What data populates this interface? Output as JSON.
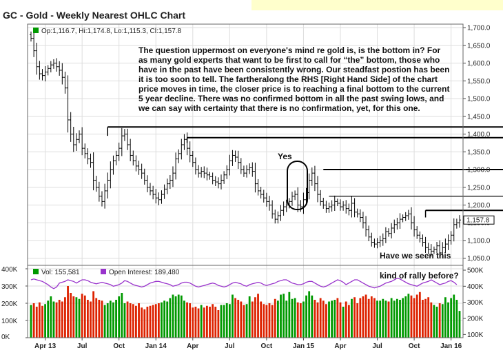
{
  "chart_data": [
    {
      "type": "ohlc",
      "title": "GC - Gold - Weekly Nearest OHLC Chart",
      "legend": "Op:1,116.7, Hi:1,174.8, Lo:1,115.3, Cl:1,157.8",
      "last_close_label": "1,157.8",
      "last_close": 1157.8,
      "ylim": [
        1030,
        1710
      ],
      "y_ticks": [
        "1,700.0",
        "1,650.0",
        "1,600.0",
        "1,550.0",
        "1,500.0",
        "1,450.0",
        "1,400.0",
        "1,350.0",
        "1,300.0",
        "1,250.0",
        "1,200.0",
        "1,150.0",
        "1,100.0",
        "1,050.0"
      ],
      "y_tick_values": [
        1700,
        1650,
        1600,
        1550,
        1500,
        1450,
        1400,
        1350,
        1300,
        1250,
        1200,
        1150,
        1100,
        1050
      ],
      "x_ticks": [
        "Apr 13",
        "Jul",
        "Oct",
        "Jan 14",
        "Apr",
        "Jul",
        "Oct",
        "Jan 15",
        "Apr",
        "Jul",
        "Oct",
        "Jan 16"
      ],
      "x_tick_weeks": [
        5,
        18,
        31,
        44,
        57,
        70,
        83,
        96,
        109,
        122,
        135,
        148
      ],
      "weeks": 152,
      "close": [
        1670,
        1635,
        1590,
        1570,
        1565,
        1575,
        1585,
        1595,
        1600,
        1590,
        1580,
        1560,
        1530,
        1440,
        1400,
        1370,
        1385,
        1400,
        1360,
        1345,
        1330,
        1320,
        1270,
        1250,
        1225,
        1210,
        1240,
        1270,
        1300,
        1325,
        1340,
        1360,
        1395,
        1400,
        1370,
        1340,
        1325,
        1310,
        1300,
        1290,
        1270,
        1250,
        1240,
        1230,
        1220,
        1215,
        1230,
        1245,
        1260,
        1270,
        1290,
        1330,
        1345,
        1370,
        1385,
        1360,
        1340,
        1320,
        1300,
        1290,
        1295,
        1290,
        1285,
        1280,
        1270,
        1265,
        1260,
        1270,
        1285,
        1300,
        1325,
        1340,
        1335,
        1320,
        1300,
        1290,
        1300,
        1305,
        1295,
        1260,
        1240,
        1230,
        1220,
        1210,
        1200,
        1175,
        1160,
        1170,
        1185,
        1195,
        1200,
        1210,
        1225,
        1230,
        1200,
        1195,
        1215,
        1235,
        1270,
        1290,
        1260,
        1230,
        1210,
        1200,
        1190,
        1195,
        1200,
        1210,
        1205,
        1195,
        1200,
        1190,
        1185,
        1205,
        1180,
        1175,
        1165,
        1150,
        1130,
        1110,
        1095,
        1090,
        1095,
        1100,
        1105,
        1125,
        1120,
        1135,
        1145,
        1150,
        1160,
        1165,
        1170,
        1175,
        1150,
        1130,
        1115,
        1105,
        1095,
        1080,
        1075,
        1070,
        1075,
        1085,
        1065,
        1080,
        1090,
        1100,
        1115,
        1145,
        1150,
        1157.8
      ],
      "volume": [
        190,
        200,
        180,
        205,
        185,
        195,
        215,
        240,
        210,
        205,
        220,
        210,
        235,
        300,
        260,
        240,
        235,
        225,
        255,
        245,
        220,
        210,
        270,
        230,
        220,
        215,
        190,
        200,
        215,
        205,
        220,
        240,
        260,
        200,
        210,
        200,
        195,
        185,
        200,
        175,
        165,
        180,
        185,
        190,
        195,
        200,
        205,
        215,
        210,
        230,
        250,
        240,
        250,
        245,
        215,
        205,
        200,
        175,
        180,
        170,
        190,
        175,
        185,
        180,
        195,
        180,
        160,
        190,
        190,
        200,
        195,
        250,
        230,
        220,
        210,
        190,
        195,
        240,
        210,
        235,
        255,
        210,
        195,
        190,
        200,
        190,
        225,
        215,
        250,
        255,
        215,
        265,
        225,
        230,
        205,
        200,
        210,
        245,
        270,
        245,
        220,
        205,
        230,
        215,
        195,
        210,
        215,
        220,
        230,
        205,
        180,
        210,
        190,
        225,
        235,
        200,
        230,
        240,
        250,
        225,
        240,
        230,
        215,
        215,
        225,
        215,
        210,
        230,
        215,
        225,
        220,
        230,
        240,
        255,
        245,
        230,
        250,
        265,
        220,
        225,
        235,
        205,
        190,
        180,
        200,
        195,
        235,
        205,
        230,
        250,
        220,
        155.581
      ],
      "open_interest": [
        440,
        445,
        440,
        435,
        430,
        420,
        410,
        395,
        385,
        395,
        420,
        425,
        430,
        440,
        435,
        430,
        420,
        430,
        440,
        440,
        435,
        425,
        420,
        415,
        420,
        425,
        420,
        415,
        410,
        400,
        405,
        410,
        420,
        435,
        430,
        420,
        410,
        405,
        400,
        395,
        400,
        410,
        420,
        425,
        430,
        430,
        425,
        420,
        415,
        410,
        400,
        405,
        410,
        420,
        425,
        425,
        420,
        410,
        400,
        395,
        400,
        405,
        410,
        415,
        420,
        415,
        405,
        400,
        395,
        400,
        410,
        420,
        425,
        420,
        415,
        405,
        400,
        410,
        415,
        420,
        425,
        420,
        410,
        405,
        410,
        415,
        420,
        430,
        435,
        440,
        440,
        430,
        420,
        415,
        410,
        410,
        415,
        425,
        430,
        430,
        420,
        410,
        400,
        395,
        400,
        410,
        420,
        430,
        440,
        435,
        425,
        410,
        420,
        430,
        440,
        440,
        430,
        420,
        410,
        400,
        395,
        390,
        395,
        400,
        410,
        420,
        425,
        430,
        440,
        450,
        445,
        435,
        425,
        415,
        410,
        405,
        400,
        410,
        420,
        425,
        430,
        440,
        430,
        420,
        410,
        415,
        420,
        430,
        435,
        425,
        410,
        189.48
      ]
    }
  ],
  "volume_panel": {
    "vol_legend": "Vol: 155,581",
    "oi_legend": "Open Interest: 189,480",
    "vol_ticks_left": [
      "400K",
      "300K",
      "200K",
      "100K",
      "0K"
    ],
    "vol_tick_values": [
      400,
      300,
      200,
      100,
      0
    ],
    "oi_ticks_right": [
      "500K",
      "400K",
      "300K",
      "200K",
      "100K"
    ],
    "oi_tick_values": [
      500,
      400,
      300,
      200,
      100
    ]
  },
  "annotations": {
    "commentary": [
      "The question uppermost on everyone's mind re gold is, is the bottom in?  For",
      "as many gold experts that want to be first to call for “the” bottom, those who",
      "have in the past have been consistently wrong.  Our steadfast postion has been",
      "it is too soon to tell.  The fartheralong the RHS [Right Hand Side] of the chart",
      "price moves in time, the closer price is to reaching a final bottom to the current",
      "5 year decline.  There was no confirmed bottom in all the past swing lows, and",
      "we can say with certainty that there is no confirmation, yet, for this one."
    ],
    "yes": "Yes",
    "have_we_seen": "Have we seen this",
    "kind_of_rally": "kind of rally before?"
  },
  "colors": {
    "bar": "#000000",
    "vol_up": "#009900",
    "vol_down": "#dd2200",
    "oi": "#9933cc",
    "grid": "#dddddd",
    "last_label_bg": "#ffffff"
  },
  "resistance_levels": [
    1420,
    1390,
    1300,
    1225,
    1185
  ]
}
